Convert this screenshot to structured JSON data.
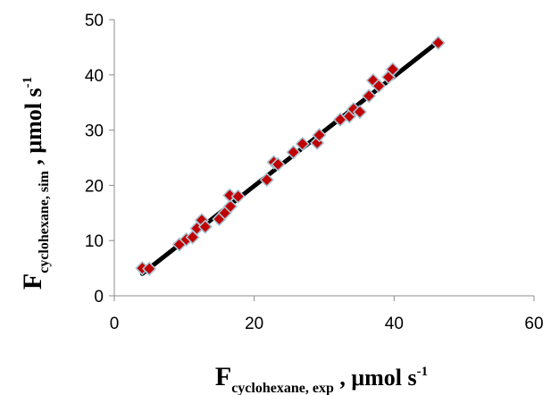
{
  "chart_data": {
    "type": "scatter",
    "title": "",
    "xlabel": {
      "main": "F",
      "sub": "cyclohexane, exp",
      "unit_prefix": " , μmol s",
      "unit_sup": "-1"
    },
    "ylabel": {
      "main": "F",
      "sub": "cyclohexane, sim",
      "unit_prefix": " ,  μmol s",
      "unit_sup": "-1"
    },
    "xlim": [
      0,
      60
    ],
    "ylim": [
      0,
      50
    ],
    "xticks": [
      0,
      20,
      40,
      60
    ],
    "yticks": [
      0,
      10,
      20,
      30,
      40,
      50
    ],
    "xtick_labels": [
      "0",
      "20",
      "40",
      "60"
    ],
    "ytick_labels": [
      "0",
      "10",
      "20",
      "30",
      "40",
      "50"
    ],
    "grid": false,
    "legend": "none",
    "marker": "diamond",
    "marker_color": "#c00000",
    "marker_edge_color": "#a9c4d4",
    "trendline_color": "#000000",
    "trendline": {
      "x": [
        4,
        46.5
      ],
      "y": [
        4,
        46.2
      ]
    },
    "series": [
      {
        "points": [
          {
            "x": 4.0,
            "y": 5.0
          },
          {
            "x": 5.0,
            "y": 4.9
          },
          {
            "x": 9.3,
            "y": 9.3
          },
          {
            "x": 10.3,
            "y": 10.2
          },
          {
            "x": 11.2,
            "y": 10.6
          },
          {
            "x": 11.8,
            "y": 12.2
          },
          {
            "x": 12.5,
            "y": 13.7
          },
          {
            "x": 13.0,
            "y": 12.5
          },
          {
            "x": 15.0,
            "y": 13.9
          },
          {
            "x": 15.8,
            "y": 15.0
          },
          {
            "x": 16.6,
            "y": 16.2
          },
          {
            "x": 16.5,
            "y": 18.2
          },
          {
            "x": 17.7,
            "y": 18.0
          },
          {
            "x": 21.8,
            "y": 21.0
          },
          {
            "x": 22.8,
            "y": 24.2
          },
          {
            "x": 23.4,
            "y": 23.8
          },
          {
            "x": 25.6,
            "y": 26.0
          },
          {
            "x": 26.9,
            "y": 27.5
          },
          {
            "x": 29.0,
            "y": 27.7
          },
          {
            "x": 29.3,
            "y": 29.1
          },
          {
            "x": 32.3,
            "y": 31.9
          },
          {
            "x": 33.6,
            "y": 32.5
          },
          {
            "x": 34.2,
            "y": 33.8
          },
          {
            "x": 35.1,
            "y": 33.3
          },
          {
            "x": 36.4,
            "y": 36.2
          },
          {
            "x": 37.0,
            "y": 39.0
          },
          {
            "x": 37.8,
            "y": 38.0
          },
          {
            "x": 39.2,
            "y": 39.6
          },
          {
            "x": 39.8,
            "y": 41.0
          },
          {
            "x": 46.3,
            "y": 45.8
          }
        ]
      }
    ]
  }
}
